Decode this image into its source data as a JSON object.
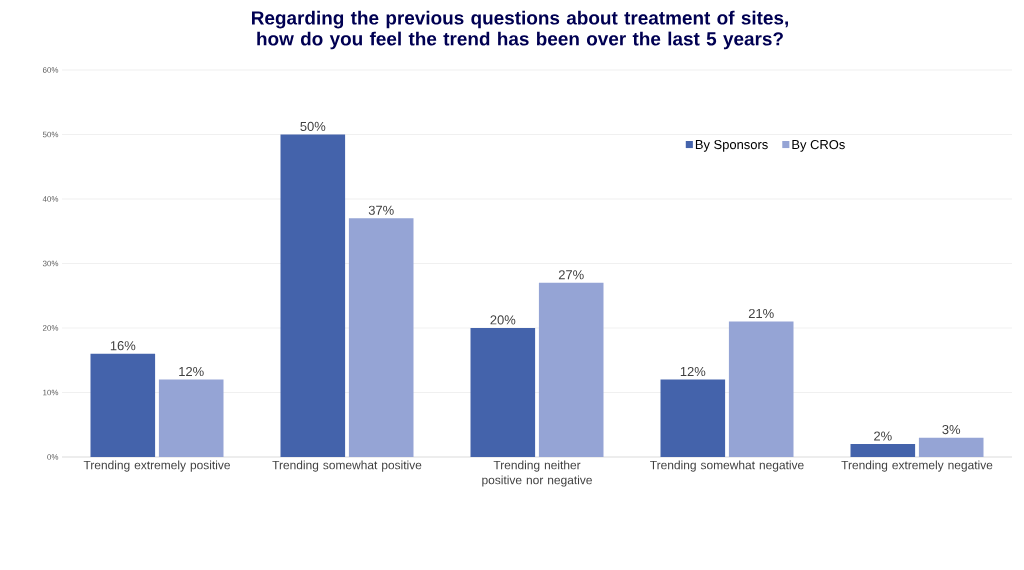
{
  "chart_data": {
    "type": "bar",
    "title": "Regarding the previous questions about treatment of sites, how do you feel the trend has been over the last 5 years?",
    "categories": [
      "Trending extremely positive",
      "Trending somewhat positive",
      "Trending neither positive nor negative",
      "Trending somewhat negative",
      "Trending extremely negative"
    ],
    "series": [
      {
        "name": "By Sponsors",
        "color": "#4463ab",
        "values": [
          16,
          50,
          20,
          12,
          2
        ],
        "value_labels": [
          "16%",
          "50%",
          "20%",
          "12%",
          "2%"
        ]
      },
      {
        "name": "By CROs",
        "color": "#95a4d5",
        "values": [
          12,
          37,
          27,
          21,
          3
        ],
        "value_labels": [
          "12%",
          "37%",
          "27%",
          "21%",
          "3%"
        ]
      }
    ],
    "ylim": [
      0,
      60
    ],
    "yticks": [
      {
        "value": 0,
        "label": "0%"
      },
      {
        "value": 10,
        "label": "10%"
      },
      {
        "value": 20,
        "label": "20%"
      },
      {
        "value": 30,
        "label": "30%"
      },
      {
        "value": 40,
        "label": "40%"
      },
      {
        "value": 50,
        "label": "50%"
      },
      {
        "value": 60,
        "label": "60%"
      }
    ],
    "grid": "y",
    "legend": "top right"
  }
}
